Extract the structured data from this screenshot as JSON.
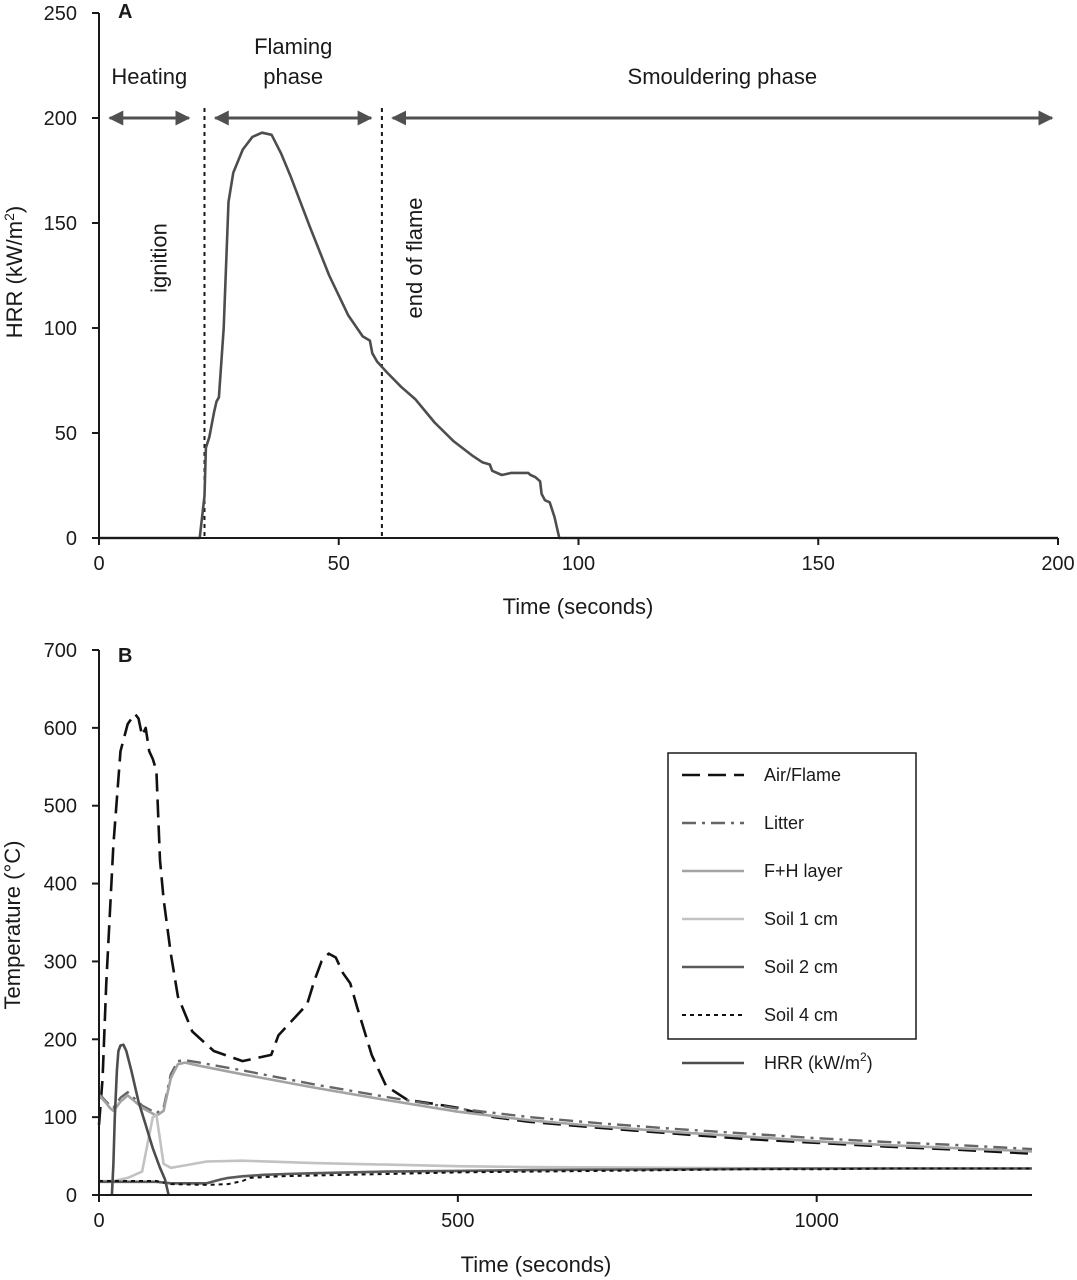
{
  "colors": {
    "axis": "#1a1a1a",
    "hrr": "#4d4d4d",
    "phase_arrow": "#505050",
    "air_flame": "#111111",
    "litter": "#666666",
    "fh_layer": "#a3a3a3",
    "soil1": "#c2c2c2",
    "soil2": "#5a5a5a",
    "soil4": "#111111"
  },
  "chart_data": [
    {
      "type": "line",
      "panel": "A",
      "xlabel": "Time (seconds)",
      "ylabel": "HRR (kW/m²)",
      "ylabel_parts": [
        "HRR (kW/m",
        "2",
        ")"
      ],
      "xlim": [
        0,
        200
      ],
      "ylim": [
        0,
        250
      ],
      "xticks": [
        0,
        50,
        100,
        150,
        200
      ],
      "yticks": [
        0,
        50,
        100,
        150,
        200,
        250
      ],
      "grid": false,
      "series": [
        {
          "x": [
            0,
            21,
            22,
            22.3,
            23,
            24,
            24.5,
            25,
            26,
            27,
            28,
            30,
            32,
            34,
            36,
            38,
            40,
            44,
            48,
            52,
            55,
            56.5,
            57,
            58,
            60,
            63,
            66,
            70,
            74,
            78,
            80,
            81.5,
            82,
            84,
            86,
            88,
            89.5,
            90,
            91,
            92,
            92.3,
            93,
            94,
            95,
            96,
            97,
            200
          ],
          "y": [
            0,
            0,
            20,
            43,
            48,
            60,
            65,
            67,
            100,
            160,
            174,
            185,
            191,
            193,
            192,
            183,
            172,
            148,
            125,
            106,
            96,
            94,
            88,
            84,
            79,
            72,
            66,
            55,
            46,
            39,
            36,
            35,
            32,
            30,
            31,
            31,
            31,
            30,
            29,
            27,
            21,
            18,
            17,
            10,
            0,
            0,
            0
          ]
        }
      ],
      "vlines": [
        {
          "x": 22,
          "label": "ignition"
        },
        {
          "x": 59,
          "label": "end of flame"
        }
      ],
      "phases": [
        {
          "label_lines": [
            "Heating"
          ],
          "from": 1,
          "to": 20
        },
        {
          "label_lines": [
            "Flaming",
            "phase"
          ],
          "from": 23,
          "to": 58
        },
        {
          "label_lines": [
            "Smouldering phase"
          ],
          "from": 60,
          "to": 200
        }
      ],
      "phase_arrow_y": 200
    },
    {
      "type": "line",
      "panel": "B",
      "xlabel": "Time (seconds)",
      "ylabel": "Temperature (°C)",
      "xlim": [
        0,
        1300
      ],
      "ylim": [
        0,
        700
      ],
      "xticks": [
        0,
        500,
        1000
      ],
      "yticks": [
        0,
        100,
        200,
        300,
        400,
        500,
        600,
        700
      ],
      "grid": false,
      "legend_position": "upper-right",
      "series": [
        {
          "name": "Air/Flame",
          "key": "air_flame",
          "dash": "18 8",
          "x": [
            0,
            5,
            10,
            20,
            30,
            40,
            50,
            55,
            60,
            65,
            70,
            75,
            80,
            85,
            90,
            100,
            110,
            130,
            160,
            200,
            240,
            250,
            270,
            290,
            300,
            310,
            320,
            330,
            340,
            350,
            360,
            380,
            400,
            430,
            460,
            500,
            550,
            600,
            700,
            800,
            900,
            1000,
            1100,
            1200,
            1300
          ],
          "y": [
            90,
            150,
            270,
            450,
            570,
            605,
            618,
            612,
            590,
            600,
            570,
            560,
            545,
            430,
            380,
            310,
            255,
            210,
            185,
            172,
            180,
            205,
            225,
            245,
            275,
            300,
            310,
            305,
            285,
            272,
            240,
            180,
            140,
            122,
            118,
            112,
            100,
            94,
            86,
            79,
            72,
            67,
            62,
            58,
            53
          ]
        },
        {
          "name": "Litter",
          "key": "litter",
          "dash": "14 6 3 6",
          "x": [
            0,
            10,
            15,
            20,
            30,
            40,
            60,
            80,
            90,
            100,
            110,
            120,
            140,
            200,
            300,
            400,
            500,
            600,
            700,
            800,
            900,
            1000,
            1100,
            1200,
            1300
          ],
          "y": [
            130,
            120,
            115,
            112,
            125,
            132,
            115,
            105,
            112,
            155,
            172,
            173,
            170,
            160,
            142,
            126,
            111,
            100,
            92,
            85,
            79,
            73,
            68,
            64,
            59
          ]
        },
        {
          "name": "F+H layer",
          "key": "fh_layer",
          "dash": "",
          "x": [
            0,
            10,
            15,
            20,
            30,
            40,
            60,
            80,
            90,
            100,
            110,
            120,
            140,
            200,
            300,
            400,
            500,
            600,
            700,
            800,
            900,
            1000,
            1100,
            1200,
            1300
          ],
          "y": [
            128,
            118,
            112,
            108,
            120,
            128,
            112,
            102,
            108,
            150,
            168,
            170,
            166,
            155,
            138,
            122,
            107,
            96,
            88,
            81,
            75,
            69,
            64,
            60,
            56
          ]
        },
        {
          "name": "Soil 1 cm",
          "key": "soil1",
          "dash": "",
          "x": [
            0,
            20,
            40,
            60,
            75,
            80,
            90,
            100,
            120,
            150,
            200,
            300,
            400,
            500,
            600,
            800,
            1000,
            1200,
            1300
          ],
          "y": [
            18,
            18,
            22,
            30,
            100,
            103,
            40,
            35,
            38,
            43,
            44,
            41,
            39,
            37,
            36,
            35,
            34,
            34,
            34
          ]
        },
        {
          "name": "Soil 2 cm",
          "key": "soil2",
          "dash": "",
          "x": [
            0,
            80,
            100,
            150,
            170,
            180,
            200,
            230,
            260,
            300,
            400,
            500,
            600,
            800,
            1000,
            1200,
            1300
          ],
          "y": [
            17,
            17,
            15,
            15,
            20,
            22,
            24,
            26,
            27,
            28,
            30,
            31,
            32,
            33,
            34,
            34,
            34
          ]
        },
        {
          "name": "Soil 4 cm",
          "key": "soil4",
          "dash": "4 4",
          "x": [
            0,
            80,
            100,
            150,
            180,
            200,
            210,
            250,
            300,
            400,
            500,
            600,
            700,
            800,
            900,
            1000,
            1100,
            1200,
            1300
          ],
          "y": [
            18,
            18,
            14,
            13,
            14,
            18,
            22,
            24,
            25,
            27,
            29,
            30,
            31,
            32,
            33,
            33,
            34,
            34,
            34
          ]
        },
        {
          "name": "HRR (kW/m²)",
          "key": "hrr",
          "dash": "",
          "name_parts": [
            "HRR (kW/m",
            "2",
            ")"
          ],
          "x": [
            18,
            20,
            22,
            25,
            27,
            30,
            34,
            38,
            45,
            55,
            65,
            75,
            85,
            92,
            97
          ],
          "y": [
            0,
            40,
            100,
            160,
            185,
            192,
            193,
            185,
            160,
            120,
            90,
            60,
            35,
            20,
            0
          ]
        }
      ]
    }
  ]
}
